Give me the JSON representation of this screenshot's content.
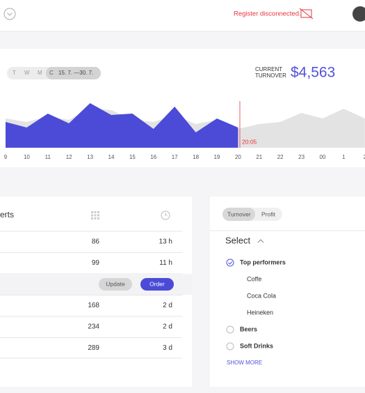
{
  "header": {
    "status": "Register disconnected."
  },
  "period": {
    "tabs": [
      "T",
      "W",
      "M",
      "C"
    ],
    "range": "15. 7. —30. 7."
  },
  "turnover": {
    "label_line1": "CURRENT",
    "label_line2": "TURNOVER",
    "value": "$4,563"
  },
  "chart_data": {
    "type": "area",
    "categories": [
      "9",
      "10",
      "11",
      "12",
      "13",
      "14",
      "15",
      "16",
      "17",
      "18",
      "19",
      "20",
      "21",
      "22",
      "23",
      "00",
      "1",
      "2"
    ],
    "series": [
      {
        "color": "#e3e3e3",
        "values": [
          42,
          37,
          45,
          40,
          57,
          54,
          40,
          37,
          47,
          34,
          40,
          27,
          34,
          37,
          50,
          42,
          56,
          42
        ]
      },
      {
        "color": "#4b4bd8",
        "values": [
          37,
          29,
          49,
          35,
          64,
          47,
          49,
          27,
          59,
          22,
          42,
          29,
          null,
          null,
          null,
          null,
          null,
          null
        ]
      }
    ],
    "ylim": [
      0,
      100
    ],
    "marker_label": "20:05"
  },
  "alerts": {
    "title": "erts",
    "rows": [
      {
        "value": 86,
        "time": "13 h"
      },
      {
        "value": 99,
        "time": "11 h"
      },
      {
        "buttons": [
          "Update",
          "Order"
        ]
      },
      {
        "value": 168,
        "time": "2 d"
      },
      {
        "value": 234,
        "time": "2 d"
      },
      {
        "value": 289,
        "time": "3 d"
      }
    ]
  },
  "filters": {
    "tabs": [
      "Turnover",
      "Profit"
    ],
    "select": "Select",
    "items": [
      {
        "label": "Top performers",
        "checked": true
      },
      {
        "label": "Coffe",
        "sub": true
      },
      {
        "label": "Coca Cola",
        "sub": true
      },
      {
        "label": "Heineken",
        "sub": true
      },
      {
        "label": "Beers"
      },
      {
        "label": "Soft Drinks"
      }
    ],
    "show_more": "SHOW MORE"
  }
}
